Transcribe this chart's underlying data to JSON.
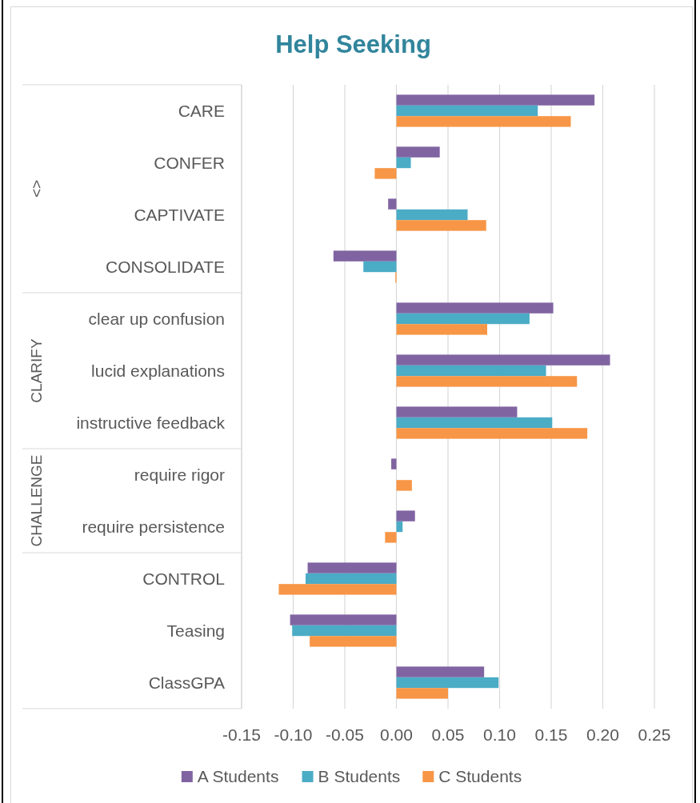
{
  "chart_data": {
    "type": "bar",
    "orientation": "horizontal",
    "title": "Help Seeking",
    "categories": [
      "CARE",
      "CONFER",
      "CAPTIVATE",
      "CONSOLIDATE",
      "clear up confusion",
      "lucid explanations",
      "instructive feedback",
      "require rigor",
      "require persistence",
      "CONTROL",
      "Teasing",
      "ClassGPA"
    ],
    "series": [
      {
        "name": "A Students",
        "color": "#8064a2",
        "values": [
          0.192,
          0.042,
          -0.008,
          -0.061,
          0.152,
          0.207,
          0.117,
          -0.005,
          0.018,
          -0.086,
          -0.103,
          0.085
        ]
      },
      {
        "name": "B Students",
        "color": "#4bacc6",
        "values": [
          0.137,
          0.014,
          0.069,
          -0.032,
          0.129,
          0.145,
          0.151,
          null,
          0.006,
          -0.088,
          -0.101,
          0.099
        ]
      },
      {
        "name": "C Students",
        "color": "#f79646",
        "values": [
          0.169,
          -0.021,
          0.087,
          -0.001,
          0.088,
          0.175,
          0.185,
          0.015,
          -0.011,
          -0.114,
          -0.084,
          0.05
        ]
      }
    ],
    "xlim": [
      -0.15,
      0.25
    ],
    "xticks": [
      -0.15,
      {
        "value": -0.1,
        "label": "-0.10"
      },
      -0.05,
      {
        "value": 0,
        "label": "0.00"
      },
      0.05,
      {
        "value": 0.1,
        "label": "0.10"
      },
      0.15,
      {
        "value": 0.2,
        "label": "0.20"
      },
      0.25
    ],
    "grid": "x",
    "legend": "bottom",
    "annotations": [
      "<>",
      "CLARIFY",
      "CHALLENGE"
    ]
  }
}
